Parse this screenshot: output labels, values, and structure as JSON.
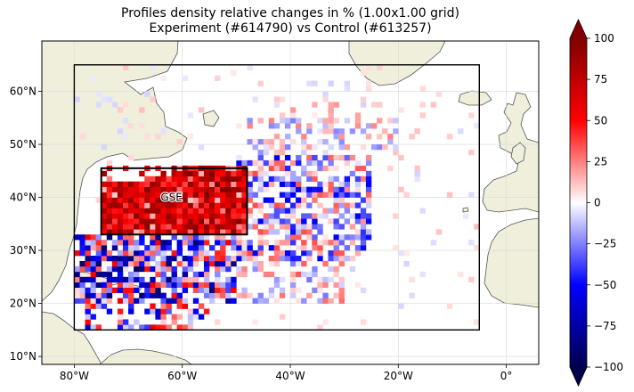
{
  "title_line1": "Profiles density relative changes in % (1.00x1.00 grid)",
  "title_line2": "Experiment (#614790) vs Control (#613257)",
  "map": {
    "lon_range": [
      -86,
      6
    ],
    "lat_range": [
      8.5,
      69.5
    ],
    "lon_ticks": [
      {
        "value": -80,
        "label": "80°W"
      },
      {
        "value": -60,
        "label": "60°W"
      },
      {
        "value": -40,
        "label": "40°W"
      },
      {
        "value": -20,
        "label": "20°W"
      },
      {
        "value": 0,
        "label": "0°"
      }
    ],
    "lat_ticks": [
      {
        "value": 10,
        "label": "10°N"
      },
      {
        "value": 20,
        "label": "20°N"
      },
      {
        "value": 30,
        "label": "30°N"
      },
      {
        "value": 40,
        "label": "40°N"
      },
      {
        "value": 50,
        "label": "50°N"
      },
      {
        "value": 60,
        "label": "60°N"
      }
    ],
    "outer_box": {
      "lon": [
        -80,
        -5
      ],
      "lat": [
        15,
        65
      ]
    },
    "inner_box": {
      "lon": [
        -75,
        -48
      ],
      "lat": [
        33,
        45.5
      ],
      "label": "GSE"
    },
    "land_color": "#efefdc",
    "ocean_color": "#ffffff",
    "coast_color": "#555555",
    "grid": true
  },
  "colorbar": {
    "colormap": "seismic",
    "min": -100,
    "max": 100,
    "extend": "both",
    "ticks": [
      {
        "value": 100,
        "label": "100"
      },
      {
        "value": 75,
        "label": "75"
      },
      {
        "value": 50,
        "label": "50"
      },
      {
        "value": 25,
        "label": "25"
      },
      {
        "value": 0,
        "label": "0"
      },
      {
        "value": -25,
        "label": "−25"
      },
      {
        "value": -50,
        "label": "−50"
      },
      {
        "value": -75,
        "label": "−75"
      },
      {
        "value": -100,
        "label": "−100"
      }
    ]
  }
}
